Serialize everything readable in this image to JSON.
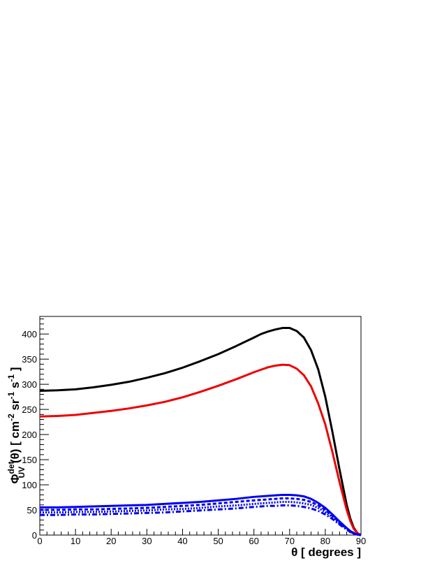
{
  "chart_data": {
    "type": "line",
    "xlabel": "θ [ degrees ]",
    "ylabel": {
      "phi": "Φ",
      "sup": "det",
      "sub": "UV",
      "mid": " (θ) [ cm",
      "exp1": "-2",
      "mid2": " sr",
      "exp2": "-1",
      "mid3": " s",
      "exp3": "-1",
      "end": " ]"
    },
    "xlim": [
      0,
      90
    ],
    "ylim": [
      0,
      435
    ],
    "xticks": [
      0,
      10,
      20,
      30,
      40,
      50,
      60,
      70,
      80,
      90
    ],
    "yticks": [
      0,
      50,
      100,
      150,
      200,
      250,
      300,
      350,
      400
    ],
    "grid": false,
    "series": [
      {
        "color": "#000000",
        "dash": "solid",
        "x": [
          0,
          5,
          10,
          15,
          20,
          25,
          30,
          35,
          40,
          45,
          50,
          55,
          60,
          62,
          64,
          66,
          68,
          70,
          72,
          74,
          76,
          78,
          80,
          82,
          84,
          86,
          87,
          88,
          89,
          90
        ],
        "y": [
          287,
          288,
          290,
          294,
          299,
          305,
          313,
          322,
          333,
          346,
          360,
          376,
          393,
          400,
          405,
          409,
          412,
          412,
          406,
          393,
          368,
          330,
          275,
          205,
          130,
          60,
          33,
          14,
          4,
          0
        ]
      },
      {
        "color": "#ee0000",
        "dash": "solid",
        "x": [
          0,
          5,
          10,
          15,
          20,
          25,
          30,
          35,
          40,
          45,
          50,
          55,
          60,
          62,
          64,
          66,
          68,
          70,
          72,
          74,
          76,
          78,
          80,
          82,
          84,
          86,
          87,
          88,
          89,
          90
        ],
        "y": [
          236,
          237,
          239,
          243,
          247,
          252,
          258,
          265,
          274,
          285,
          297,
          310,
          324,
          329,
          334,
          337,
          339,
          338,
          331,
          318,
          296,
          262,
          220,
          165,
          105,
          50,
          28,
          12,
          4,
          0
        ]
      },
      {
        "color": "#0000ee",
        "dash": "solid",
        "x": [
          0,
          5,
          10,
          15,
          20,
          25,
          30,
          35,
          40,
          45,
          50,
          55,
          60,
          62,
          64,
          66,
          68,
          70,
          72,
          74,
          76,
          78,
          80,
          82,
          84,
          86,
          87,
          88,
          89,
          90
        ],
        "y": [
          55,
          55,
          56,
          57,
          58,
          59,
          60,
          62,
          64,
          66,
          69,
          72,
          76,
          77,
          78,
          79,
          80,
          80,
          79,
          77,
          72,
          64,
          54,
          41,
          27,
          14,
          8,
          4,
          1,
          0
        ]
      },
      {
        "color": "#0000ee",
        "dash": "dashed",
        "x": [
          0,
          5,
          10,
          15,
          20,
          25,
          30,
          35,
          40,
          45,
          50,
          55,
          60,
          62,
          64,
          66,
          68,
          70,
          72,
          74,
          76,
          78,
          80,
          82,
          84,
          86,
          87,
          88,
          89,
          90
        ],
        "y": [
          50,
          50,
          51,
          51,
          52,
          53,
          54,
          56,
          58,
          60,
          63,
          66,
          69,
          70,
          71,
          72,
          73,
          73,
          72,
          70,
          66,
          59,
          50,
          38,
          25,
          13,
          7,
          3,
          1,
          0
        ]
      },
      {
        "color": "#0000ee",
        "dash": "dotted",
        "x": [
          0,
          5,
          10,
          15,
          20,
          25,
          30,
          35,
          40,
          45,
          50,
          55,
          60,
          62,
          64,
          66,
          68,
          70,
          72,
          74,
          76,
          78,
          80,
          82,
          84,
          86,
          87,
          88,
          89,
          90
        ],
        "y": [
          45,
          45,
          46,
          46,
          47,
          48,
          49,
          51,
          52,
          54,
          57,
          59,
          62,
          63,
          64,
          65,
          66,
          66,
          65,
          63,
          60,
          54,
          46,
          35,
          23,
          12,
          7,
          3,
          1,
          0
        ]
      },
      {
        "color": "#0000ee",
        "dash": "dashdot",
        "x": [
          0,
          5,
          10,
          15,
          20,
          25,
          30,
          35,
          40,
          45,
          50,
          55,
          60,
          62,
          64,
          66,
          68,
          70,
          72,
          74,
          76,
          78,
          80,
          82,
          84,
          86,
          87,
          88,
          89,
          90
        ],
        "y": [
          40,
          40,
          41,
          41,
          42,
          43,
          44,
          45,
          47,
          49,
          51,
          53,
          56,
          57,
          58,
          58,
          59,
          59,
          58,
          56,
          53,
          48,
          41,
          32,
          21,
          11,
          6,
          3,
          1,
          0
        ]
      }
    ]
  }
}
